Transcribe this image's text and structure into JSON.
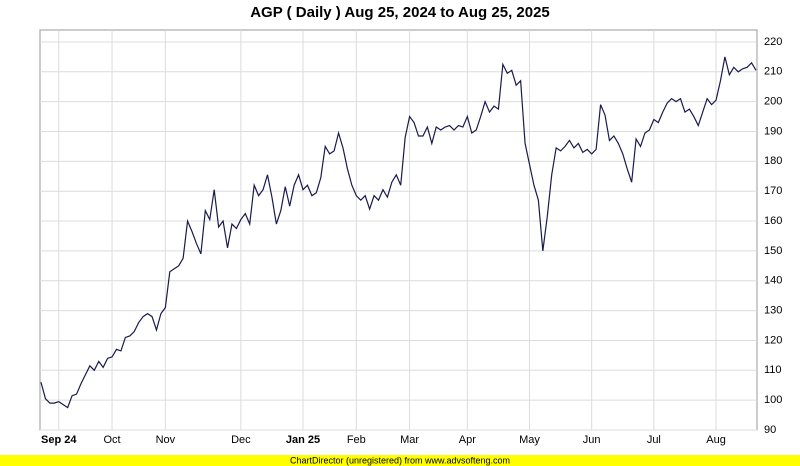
{
  "chart_data": {
    "type": "line",
    "title": "AGP ( Daily ) Aug 25, 2024 to Aug 25, 2025",
    "footer": "ChartDirector (unregistered) from www.advsofteng.com",
    "categories": [
      null,
      null,
      null,
      null,
      "Sep 24",
      null,
      null,
      null,
      null,
      null,
      null,
      null,
      null,
      null,
      null,
      null,
      "Oct",
      null,
      null,
      null,
      null,
      null,
      null,
      null,
      null,
      null,
      null,
      null,
      "Nov",
      null,
      null,
      null,
      null,
      null,
      null,
      null,
      null,
      null,
      null,
      null,
      null,
      null,
      null,
      null,
      null,
      "Dec",
      null,
      null,
      null,
      null,
      null,
      null,
      null,
      null,
      null,
      null,
      null,
      null,
      null,
      "Jan 25",
      null,
      null,
      null,
      null,
      null,
      null,
      null,
      null,
      null,
      null,
      null,
      "Feb",
      null,
      null,
      null,
      null,
      null,
      null,
      null,
      null,
      null,
      null,
      null,
      "Mar",
      null,
      null,
      null,
      null,
      null,
      null,
      null,
      null,
      null,
      null,
      null,
      null,
      "Apr",
      null,
      null,
      null,
      null,
      null,
      null,
      null,
      null,
      null,
      null,
      null,
      null,
      null,
      "May",
      null,
      null,
      null,
      null,
      null,
      null,
      null,
      null,
      null,
      null,
      null,
      null,
      null,
      "Jun",
      null,
      null,
      null,
      null,
      null,
      null,
      null,
      null,
      null,
      null,
      null,
      null,
      null,
      "Jul",
      null,
      null,
      null,
      null,
      null,
      null,
      null,
      null,
      null,
      null,
      null,
      null,
      null,
      "Aug",
      null,
      null,
      null,
      null,
      null,
      null,
      null,
      null,
      null
    ],
    "series": [
      {
        "name": "AGP",
        "color": "#1a1a4e",
        "values": [
          106,
          100.5,
          99,
          99,
          99.5,
          98.5,
          97.5,
          101.5,
          102,
          105.5,
          108.5,
          111.5,
          110,
          113,
          111,
          114,
          114.5,
          117,
          116.5,
          121,
          121.5,
          123,
          126,
          128,
          129,
          128,
          123.5,
          129,
          131,
          143,
          144,
          145,
          147.5,
          160,
          156.5,
          152.5,
          149,
          163.5,
          160.5,
          170.5,
          158,
          160,
          151,
          159,
          157.5,
          160.5,
          162.5,
          159,
          172,
          168.5,
          170.5,
          175.5,
          168,
          159,
          163.5,
          171.5,
          165,
          172,
          175.5,
          170.5,
          172,
          168.5,
          169.5,
          174.5,
          185,
          182.5,
          183.5,
          189.5,
          184.5,
          177.5,
          172,
          168.5,
          167,
          168.5,
          164,
          168.5,
          167,
          170.5,
          168,
          173,
          175.5,
          172,
          188,
          195,
          193,
          188.5,
          188.5,
          191.5,
          186,
          191.5,
          190.5,
          191.5,
          192,
          190.5,
          192,
          191.5,
          195,
          189.5,
          190.5,
          195,
          200,
          196.5,
          198.5,
          197.5,
          212.5,
          209.5,
          210.5,
          205.5,
          207,
          186,
          179,
          172,
          167,
          150,
          161.5,
          175.5,
          184.5,
          183.5,
          185,
          187,
          184.5,
          186,
          183,
          184,
          182.5,
          184,
          199,
          195.5,
          187,
          188.5,
          186,
          182.5,
          177.5,
          173,
          187.5,
          185,
          189.5,
          190.5,
          194,
          193,
          196.5,
          199.5,
          201,
          200,
          201,
          196.5,
          197.5,
          195,
          192,
          196.5,
          201,
          199,
          200.5,
          207,
          215,
          209,
          211.5,
          210,
          211,
          211.5,
          213,
          210.5
        ]
      }
    ],
    "ylim": [
      90,
      224
    ],
    "yticks": [
      90,
      100,
      110,
      120,
      130,
      140,
      150,
      160,
      170,
      180,
      190,
      200,
      210,
      220
    ],
    "grid": true
  }
}
